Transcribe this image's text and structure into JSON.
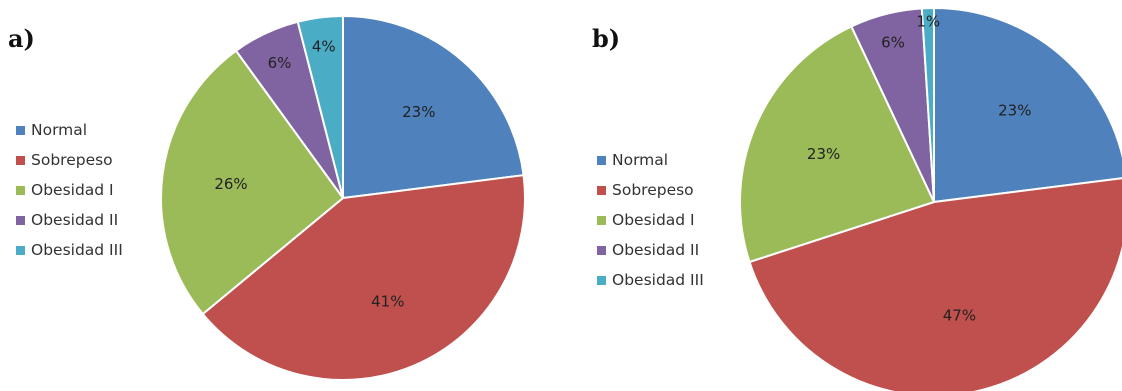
{
  "colors": {
    "Normal": "#4f81bd",
    "Sobrepeso": "#c0504d",
    "Obesidad I": "#9bbb59",
    "Obesidad II": "#8064a2",
    "Obesidad III": "#4bacc6"
  },
  "chart_data": [
    {
      "panel_label": "a)",
      "type": "pie",
      "categories": [
        "Normal",
        "Sobrepeso",
        "Obesidad I",
        "Obesidad II",
        "Obesidad III"
      ],
      "values": [
        23,
        41,
        26,
        6,
        4
      ],
      "data_labels": [
        "23%",
        "41%",
        "26%",
        "6%",
        "4%"
      ],
      "legend_placement": "left"
    },
    {
      "panel_label": "b)",
      "type": "pie",
      "categories": [
        "Normal",
        "Sobrepeso",
        "Obesidad I",
        "Obesidad II",
        "Obesidad III"
      ],
      "values": [
        23,
        47,
        23,
        6,
        1
      ],
      "data_labels": [
        "23%",
        "47%",
        "23%",
        "6%",
        "1%"
      ],
      "legend_placement": "left"
    }
  ]
}
